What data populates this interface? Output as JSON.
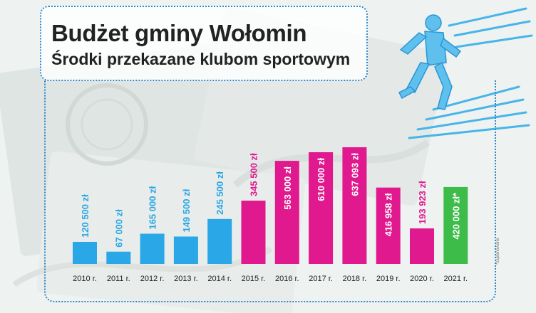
{
  "header": {
    "title": "Budżet gminy Wołomin",
    "subtitle": "Środki przekazane klubom sportowym"
  },
  "footnote": "*zaplanowane",
  "colors": {
    "blue": "#2aa7e6",
    "pink": "#e0198e",
    "green": "#3ebc4a",
    "frame": "#2c86c9"
  },
  "chart_data": {
    "type": "bar",
    "categories": [
      "2010 r.",
      "2011 r.",
      "2012 r.",
      "2013 r.",
      "2014 r.",
      "2015 r.",
      "2016 r.",
      "2017 r.",
      "2018 r.",
      "2019 r.",
      "2020 r.",
      "2021 r."
    ],
    "values": [
      120500,
      67000,
      165000,
      149500,
      245500,
      345500,
      563000,
      610000,
      637093,
      416958,
      193923,
      420000
    ],
    "value_labels": [
      "120 500 zł",
      "67 000 zł",
      "165 000 zł",
      "149 500 zł",
      "245 500 zł",
      "345 500 zł",
      "563 000 zł",
      "610 000 zł",
      "637 093 zł",
      "416 958 zł",
      "193 923 zł",
      "420 000 zł*"
    ],
    "bar_colors": [
      "blue",
      "blue",
      "blue",
      "blue",
      "blue",
      "pink",
      "pink",
      "pink",
      "pink",
      "pink",
      "pink",
      "green"
    ],
    "label_inside": [
      false,
      false,
      false,
      false,
      false,
      false,
      true,
      true,
      true,
      true,
      false,
      true
    ],
    "title": "Budżet gminy Wołomin",
    "subtitle": "Środki przekazane klubom sportowym",
    "xlabel": "",
    "ylabel": "",
    "grid": false,
    "legend": "none"
  }
}
